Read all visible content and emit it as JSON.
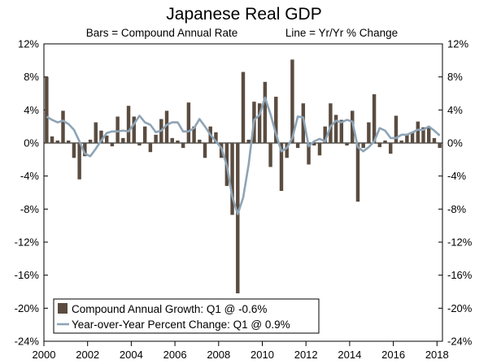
{
  "chart_data": {
    "type": "bar",
    "title": "Japanese Real GDP",
    "subtitle_left": "Bars = Compound Annual Rate",
    "subtitle_right": "Line = Yr/Yr % Change",
    "ylim": [
      -24,
      12
    ],
    "yticks": [
      "12%",
      "8%",
      "4%",
      "0%",
      "-4%",
      "-8%",
      "-12%",
      "-16%",
      "-20%",
      "-24%"
    ],
    "ytick_values": [
      12,
      8,
      4,
      0,
      -4,
      -8,
      -12,
      -16,
      -20,
      -24
    ],
    "xlim": [
      2000,
      2018.25
    ],
    "xticks": [
      "2000",
      "2002",
      "2004",
      "2006",
      "2008",
      "2010",
      "2012",
      "2014",
      "2016",
      "2018"
    ],
    "xtick_values": [
      2000,
      2002,
      2004,
      2006,
      2008,
      2010,
      2012,
      2014,
      2016,
      2018
    ],
    "colors": {
      "bars": "#5a4c40",
      "line": "#8ea4b6",
      "axis": "#000000"
    },
    "legend": {
      "position": "bottom-left",
      "bar_label": "Compound Annual Growth: Q1 @ -0.6%",
      "line_label": "Year-over-Year Percent Change: Q1 @ 0.9%"
    },
    "series": [
      {
        "name": "Compound Annual Growth",
        "kind": "bar",
        "start": 2000.0,
        "step": 0.25,
        "values": [
          8.0,
          0.8,
          0.3,
          3.9,
          0.3,
          -1.8,
          -4.4,
          -1.6,
          0.4,
          2.5,
          1.5,
          0.9,
          -0.4,
          3.2,
          0.6,
          4.5,
          3.2,
          -0.3,
          2.0,
          -1.1,
          1.0,
          2.9,
          3.9,
          0.6,
          0.3,
          -0.6,
          4.9,
          2.0,
          0.4,
          -1.8,
          2.0,
          1.3,
          -1.8,
          -5.2,
          -8.7,
          -18.2,
          8.6,
          0.4,
          5.0,
          4.8,
          7.4,
          -2.9,
          5.6,
          -5.8,
          -1.8,
          10.1,
          -0.6,
          4.8,
          -2.6,
          -0.3,
          -1.5,
          2.0,
          4.8,
          3.4,
          2.8,
          -0.3,
          3.9,
          -7.1,
          -0.6,
          2.5,
          5.9,
          -0.5,
          0.3,
          -1.3,
          3.3,
          0.3,
          1.0,
          1.3,
          2.6,
          1.9,
          2.0,
          0.6,
          -0.6
        ]
      },
      {
        "name": "Year-over-Year Percent Change",
        "kind": "line",
        "start": 2000.0,
        "step": 0.25,
        "values": [
          3.2,
          2.8,
          2.5,
          2.7,
          2.3,
          1.6,
          0.2,
          -1.3,
          -1.6,
          -0.7,
          0.3,
          1.2,
          1.4,
          1.4,
          1.5,
          1.4,
          2.3,
          3.3,
          2.5,
          2.2,
          1.3,
          1.5,
          2.2,
          2.5,
          2.5,
          1.4,
          1.4,
          1.8,
          2.9,
          2.0,
          1.0,
          0.2,
          -0.6,
          -2.7,
          -6.5,
          -8.6,
          -6.6,
          -2.6,
          2.8,
          3.4,
          5.5,
          3.5,
          1.1,
          -1.0,
          -0.6,
          0.6,
          3.2,
          3.1,
          -0.4,
          0.2,
          0.5,
          0.2,
          2.0,
          2.7,
          2.5,
          2.8,
          2.6,
          -0.5,
          -1.0,
          -0.5,
          0.2,
          1.8,
          1.5,
          0.6,
          0.6,
          1.0,
          1.0,
          1.3,
          1.6,
          1.6,
          2.0,
          1.5,
          0.9
        ]
      }
    ]
  }
}
